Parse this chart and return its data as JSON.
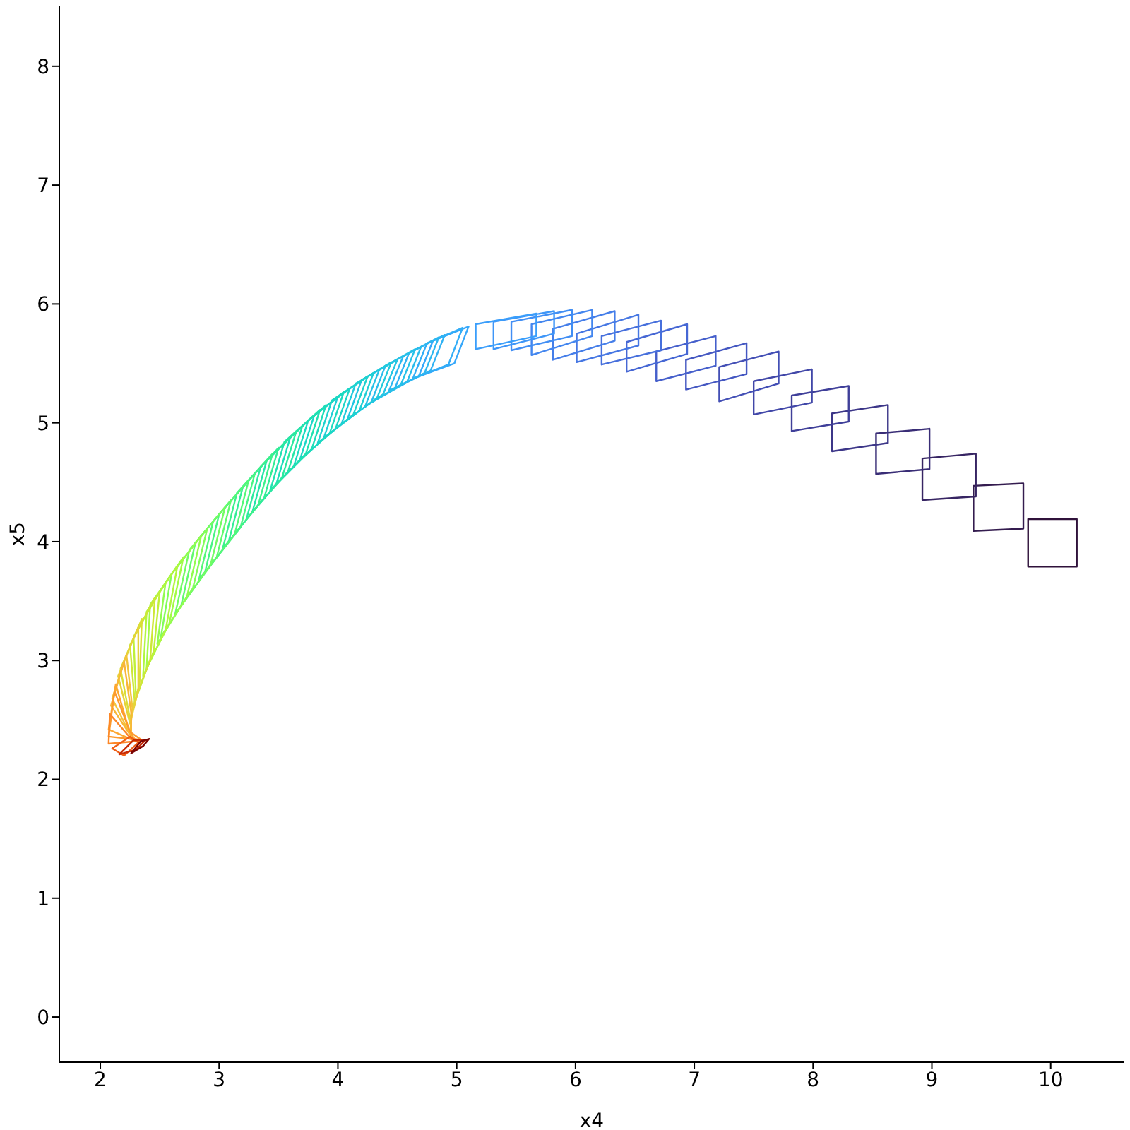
{
  "chart_data": {
    "type": "line",
    "xlabel": "x4",
    "ylabel": "x5",
    "xlim": [
      1.655,
      10.62
    ],
    "ylim": [
      -0.38,
      8.51
    ],
    "xticks": [
      2,
      3,
      4,
      5,
      6,
      7,
      8,
      9,
      10
    ],
    "yticks": [
      0,
      1,
      2,
      3,
      4,
      5,
      6,
      7,
      8
    ],
    "marker": "none",
    "line_style": "solid",
    "series": [
      {
        "color": "#30123b",
        "x": [
          9.81,
          10.22,
          10.22,
          9.81,
          9.81
        ],
        "values": [
          3.79,
          3.79,
          4.19,
          4.19,
          3.79
        ]
      },
      {
        "color": "#341c4f",
        "x": [
          9.35,
          9.77,
          9.77,
          9.35,
          9.35
        ],
        "values": [
          4.09,
          4.11,
          4.49,
          4.47,
          4.09
        ]
      },
      {
        "color": "#372563",
        "x": [
          8.92,
          9.37,
          9.37,
          8.92,
          8.92
        ],
        "values": [
          4.35,
          4.38,
          4.74,
          4.7,
          4.35
        ]
      },
      {
        "color": "#392d76",
        "x": [
          8.53,
          8.98,
          8.98,
          8.53,
          8.53
        ],
        "values": [
          4.57,
          4.61,
          4.95,
          4.91,
          4.57
        ]
      },
      {
        "color": "#3c3688",
        "x": [
          8.16,
          8.63,
          8.63,
          8.16,
          8.16
        ],
        "values": [
          4.76,
          4.83,
          5.15,
          5.08,
          4.76
        ]
      },
      {
        "color": "#3f3f99",
        "x": [
          7.82,
          8.3,
          8.3,
          7.82,
          7.82
        ],
        "values": [
          4.93,
          5.01,
          5.31,
          5.23,
          4.93
        ]
      },
      {
        "color": "#4147a8",
        "x": [
          7.5,
          7.99,
          7.99,
          7.5,
          7.5
        ],
        "values": [
          5.07,
          5.17,
          5.45,
          5.35,
          5.07
        ]
      },
      {
        "color": "#434fb5",
        "x": [
          7.21,
          7.71,
          7.71,
          7.21,
          7.21
        ],
        "values": [
          5.18,
          5.33,
          5.6,
          5.47,
          5.18
        ]
      },
      {
        "color": "#4457c1",
        "x": [
          6.93,
          7.44,
          7.44,
          6.93,
          6.93
        ],
        "values": [
          5.28,
          5.41,
          5.67,
          5.53,
          5.28
        ]
      },
      {
        "color": "#455fcb",
        "x": [
          6.68,
          7.18,
          7.18,
          6.68,
          6.68
        ],
        "values": [
          5.35,
          5.48,
          5.73,
          5.6,
          5.35
        ]
      },
      {
        "color": "#4667d4",
        "x": [
          6.43,
          6.94,
          6.94,
          6.43,
          6.43
        ],
        "values": [
          5.43,
          5.58,
          5.83,
          5.68,
          5.43
        ]
      },
      {
        "color": "#466fdc",
        "x": [
          6.22,
          6.72,
          6.72,
          6.22,
          6.22
        ],
        "values": [
          5.49,
          5.61,
          5.86,
          5.73,
          5.49
        ]
      },
      {
        "color": "#4677e3",
        "x": [
          6.01,
          6.53,
          6.53,
          6.01,
          6.01
        ],
        "values": [
          5.51,
          5.65,
          5.91,
          5.75,
          5.51
        ]
      },
      {
        "color": "#457ee9",
        "x": [
          5.81,
          6.33,
          6.33,
          5.81,
          5.81
        ],
        "values": [
          5.53,
          5.69,
          5.94,
          5.79,
          5.53
        ]
      },
      {
        "color": "#4386ef",
        "x": [
          5.63,
          6.14,
          6.14,
          5.63,
          5.63
        ],
        "values": [
          5.57,
          5.73,
          5.95,
          5.83,
          5.57
        ]
      },
      {
        "color": "#418ef4",
        "x": [
          5.46,
          5.97,
          5.97,
          5.46,
          5.46
        ],
        "values": [
          5.61,
          5.73,
          5.95,
          5.85,
          5.61
        ]
      },
      {
        "color": "#3e96f8",
        "x": [
          5.31,
          5.82,
          5.82,
          5.31,
          5.31
        ],
        "values": [
          5.62,
          5.75,
          5.94,
          5.85,
          5.62
        ]
      },
      {
        "color": "#3a9efb",
        "x": [
          5.16,
          5.67,
          5.67,
          5.16,
          5.16
        ],
        "values": [
          5.62,
          5.73,
          5.92,
          5.83,
          5.62
        ]
      },
      {
        "color": "#35a7fa",
        "x": [
          4.68,
          4.98,
          5.1,
          4.8,
          4.68
        ],
        "values": [
          5.39,
          5.5,
          5.81,
          5.69,
          5.39
        ]
      },
      {
        "color": "#32adf7",
        "x": [
          4.63,
          4.93,
          5.05,
          4.75,
          4.63
        ],
        "values": [
          5.37,
          5.49,
          5.8,
          5.67,
          5.37
        ]
      },
      {
        "color": "#2fb2f4",
        "x": [
          4.48,
          4.78,
          4.9,
          4.6,
          4.48
        ],
        "values": [
          5.29,
          5.44,
          5.74,
          5.59,
          5.29
        ]
      },
      {
        "color": "#2cb7f0",
        "x": [
          4.43,
          4.73,
          4.85,
          4.55,
          4.43
        ],
        "values": [
          5.27,
          5.42,
          5.72,
          5.56,
          5.27
        ]
      },
      {
        "color": "#29bcec",
        "x": [
          4.28,
          4.58,
          4.7,
          4.4,
          4.28
        ],
        "values": [
          5.17,
          5.34,
          5.64,
          5.48,
          5.17
        ]
      },
      {
        "color": "#26c1e7",
        "x": [
          4.23,
          4.53,
          4.65,
          4.35,
          4.23
        ],
        "values": [
          5.14,
          5.32,
          5.62,
          5.45,
          5.14
        ]
      },
      {
        "color": "#24c5e2",
        "x": [
          4.08,
          4.38,
          4.5,
          4.2,
          4.08
        ],
        "values": [
          5.03,
          5.24,
          5.53,
          5.36,
          5.03
        ]
      },
      {
        "color": "#21cadc",
        "x": [
          4.03,
          4.33,
          4.45,
          4.15,
          4.03
        ],
        "values": [
          4.99,
          5.21,
          5.51,
          5.33,
          4.99
        ]
      },
      {
        "color": "#1fced5",
        "x": [
          3.88,
          4.18,
          4.3,
          4.0,
          3.88
        ],
        "values": [
          4.87,
          5.1,
          5.42,
          5.22,
          4.87
        ]
      },
      {
        "color": "#1dd2ce",
        "x": [
          3.83,
          4.13,
          4.25,
          3.95,
          3.83
        ],
        "values": [
          4.83,
          5.07,
          5.39,
          5.19,
          4.83
        ]
      },
      {
        "color": "#1bd6c7",
        "x": [
          3.68,
          3.98,
          4.1,
          3.8,
          3.68
        ],
        "values": [
          4.69,
          4.95,
          5.29,
          5.06,
          4.69
        ]
      },
      {
        "color": "#1cdac0",
        "x": [
          3.63,
          3.93,
          4.05,
          3.75,
          3.63
        ],
        "values": [
          4.64,
          4.91,
          5.26,
          5.02,
          4.64
        ]
      },
      {
        "color": "#1dddb9",
        "x": [
          3.48,
          3.78,
          3.9,
          3.6,
          3.48
        ],
        "values": [
          4.48,
          4.78,
          5.15,
          4.88,
          4.48
        ]
      },
      {
        "color": "#20e1b0",
        "x": [
          3.43,
          3.73,
          3.85,
          3.55,
          3.43
        ],
        "values": [
          4.43,
          4.74,
          5.11,
          4.84,
          4.43
        ]
      },
      {
        "color": "#25e5a8",
        "x": [
          3.28,
          3.58,
          3.7,
          3.4,
          3.28
        ],
        "values": [
          4.25,
          4.59,
          4.97,
          4.68,
          4.25
        ]
      },
      {
        "color": "#2ce99f",
        "x": [
          3.23,
          3.53,
          3.65,
          3.35,
          3.23
        ],
        "values": [
          4.19,
          4.54,
          4.93,
          4.63,
          4.19
        ]
      },
      {
        "color": "#33ed96",
        "x": [
          3.08,
          3.38,
          3.5,
          3.2,
          3.08
        ],
        "values": [
          4.0,
          4.37,
          4.79,
          4.46,
          4.0
        ]
      },
      {
        "color": "#3cf18c",
        "x": [
          3.03,
          3.33,
          3.45,
          3.15,
          3.03
        ],
        "values": [
          3.94,
          4.31,
          4.74,
          4.41,
          3.94
        ]
      },
      {
        "color": "#47f583",
        "x": [
          2.88,
          3.18,
          3.3,
          3.0,
          2.88
        ],
        "values": [
          3.74,
          4.12,
          4.57,
          4.23,
          3.74
        ]
      },
      {
        "color": "#54f878",
        "x": [
          2.83,
          3.13,
          3.25,
          2.95,
          2.83
        ],
        "values": [
          3.68,
          4.06,
          4.52,
          4.17,
          3.68
        ]
      },
      {
        "color": "#62fa6e",
        "x": [
          2.68,
          2.98,
          3.1,
          2.8,
          2.68
        ],
        "values": [
          3.46,
          3.87,
          4.35,
          3.99,
          3.46
        ]
      },
      {
        "color": "#72fc63",
        "x": [
          2.63,
          2.93,
          3.05,
          2.75,
          2.63
        ],
        "values": [
          3.39,
          3.81,
          4.29,
          3.93,
          3.39
        ]
      },
      {
        "color": "#82fd59",
        "x": [
          2.51,
          2.78,
          2.9,
          2.6,
          2.51
        ],
        "values": [
          3.2,
          3.61,
          4.11,
          3.73,
          3.2
        ]
      },
      {
        "color": "#92fc4f",
        "x": [
          2.48,
          2.73,
          2.85,
          2.55,
          2.48
        ],
        "values": [
          3.14,
          3.54,
          4.05,
          3.66,
          3.14
        ]
      },
      {
        "color": "#a2fb46",
        "x": [
          2.39,
          2.58,
          2.7,
          2.42,
          2.39
        ],
        "values": [
          2.94,
          3.31,
          3.87,
          3.47,
          2.94
        ]
      },
      {
        "color": "#b1f640",
        "x": [
          2.36,
          2.55,
          2.65,
          2.39,
          2.36
        ],
        "values": [
          2.87,
          3.26,
          3.8,
          3.41,
          2.87
        ]
      },
      {
        "color": "#c0f03a",
        "x": [
          2.3,
          2.45,
          2.5,
          2.28,
          2.3
        ],
        "values": [
          2.7,
          3.08,
          3.58,
          3.2,
          2.7
        ]
      },
      {
        "color": "#cde737",
        "x": [
          2.29,
          2.42,
          2.46,
          2.25,
          2.29
        ],
        "values": [
          2.65,
          3.01,
          3.53,
          3.13,
          2.65
        ]
      },
      {
        "color": "#dade36",
        "x": [
          2.25,
          2.33,
          2.35,
          2.17,
          2.25
        ],
        "values": [
          2.51,
          2.8,
          3.35,
          2.93,
          2.51
        ]
      },
      {
        "color": "#e6d238",
        "x": [
          2.25,
          2.32,
          2.32,
          2.15,
          2.25
        ],
        "values": [
          2.47,
          2.75,
          3.28,
          2.87,
          2.47
        ]
      },
      {
        "color": "#f2c43a",
        "x": [
          2.25,
          2.27,
          2.22,
          2.1,
          2.25
        ],
        "values": [
          2.38,
          2.6,
          3.05,
          2.68,
          2.38
        ]
      },
      {
        "color": "#f8b637",
        "x": [
          2.26,
          2.26,
          2.2,
          2.09,
          2.26
        ],
        "values": [
          2.36,
          2.56,
          2.99,
          2.62,
          2.36
        ]
      },
      {
        "color": "#fda72f",
        "x": [
          2.3,
          2.24,
          2.13,
          2.07,
          2.3
        ],
        "values": [
          2.32,
          2.42,
          2.8,
          2.42,
          2.32
        ]
      },
      {
        "color": "#fd9a2c",
        "x": [
          2.35,
          2.25,
          2.12,
          2.07,
          2.35
        ],
        "values": [
          2.33,
          2.4,
          2.74,
          2.36,
          2.33
        ]
      },
      {
        "color": "#fc8727",
        "x": [
          2.4,
          2.26,
          2.08,
          2.07,
          2.4
        ],
        "values": [
          2.33,
          2.34,
          2.55,
          2.3,
          2.33
        ]
      },
      {
        "color": "#ef5f16",
        "x": [
          2.32,
          2.25,
          2.1,
          2.2,
          2.32
        ],
        "values": [
          2.31,
          2.36,
          2.26,
          2.2,
          2.31
        ]
      },
      {
        "color": "#c72c06",
        "x": [
          2.38,
          2.28,
          2.16,
          2.3,
          2.38
        ],
        "values": [
          2.33,
          2.33,
          2.21,
          2.25,
          2.33
        ]
      },
      {
        "color": "#7a0403",
        "x": [
          2.41,
          2.34,
          2.26,
          2.36,
          2.41
        ],
        "values": [
          2.34,
          2.32,
          2.22,
          2.28,
          2.34
        ]
      }
    ]
  }
}
